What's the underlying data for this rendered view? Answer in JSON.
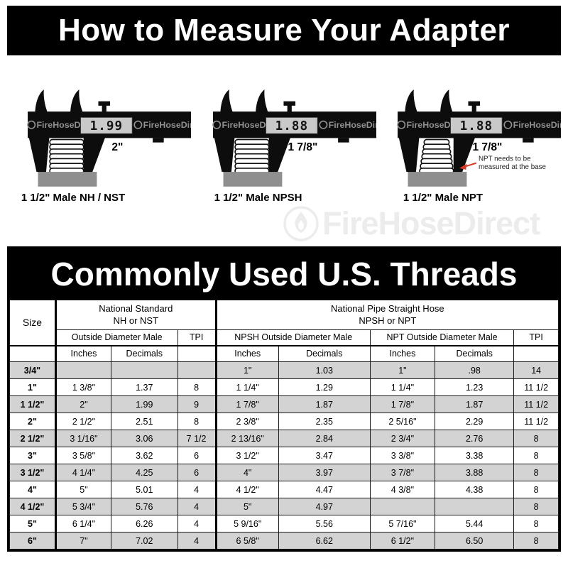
{
  "header": {
    "title": "How to Measure Your Adapter"
  },
  "watermark": {
    "brand": "FireHoseDirect"
  },
  "diagrams": [
    {
      "display": "1.99",
      "label": "2\"",
      "caption": "1 1/2\" Male NH / NST",
      "taper": false
    },
    {
      "display": "1.88",
      "label": "1 7/8\"",
      "caption": "1 1/2\" Male NPSH",
      "taper": false
    },
    {
      "display": "1.88",
      "label": "1 7/8\"",
      "caption": "1 1/2\" Male NPT",
      "taper": true,
      "note_line1": "NPT needs to be",
      "note_line2": "measured at the base"
    }
  ],
  "table": {
    "title": "Commonly Used U.S. Threads",
    "size_label": "Size",
    "nh_line1": "National Standard",
    "nh_line2": "NH or NST",
    "npsh_line1": "National Pipe Straight Hose",
    "npsh_line2": "NPSH or NPT",
    "sub_od": "Outside Diameter Male",
    "sub_tpi": "TPI",
    "sub_npsh": "NPSH Outside Diameter Male",
    "sub_npt": "NPT Outside Diameter Male",
    "unit_inches": "Inches",
    "unit_decimals": "Decimals",
    "rows": [
      {
        "size": "3/4\"",
        "nh_in": "",
        "nh_dec": "",
        "nh_tpi": "",
        "npsh_in": "1\"",
        "npsh_dec": "1.03",
        "npt_in": "1\"",
        "npt_dec": ".98",
        "tpi": "14"
      },
      {
        "size": "1\"",
        "nh_in": "1 3/8\"",
        "nh_dec": "1.37",
        "nh_tpi": "8",
        "npsh_in": "1 1/4\"",
        "npsh_dec": "1.29",
        "npt_in": "1 1/4\"",
        "npt_dec": "1.23",
        "tpi": "11 1/2"
      },
      {
        "size": "1 1/2\"",
        "nh_in": "2\"",
        "nh_dec": "1.99",
        "nh_tpi": "9",
        "npsh_in": "1 7/8\"",
        "npsh_dec": "1.87",
        "npt_in": "1 7/8\"",
        "npt_dec": "1.87",
        "tpi": "11 1/2"
      },
      {
        "size": "2\"",
        "nh_in": "2 1/2\"",
        "nh_dec": "2.51",
        "nh_tpi": "8",
        "npsh_in": "2 3/8\"",
        "npsh_dec": "2.35",
        "npt_in": "2 5/16\"",
        "npt_dec": "2.29",
        "tpi": "11 1/2"
      },
      {
        "size": "2 1/2\"",
        "nh_in": "3 1/16\"",
        "nh_dec": "3.06",
        "nh_tpi": "7 1/2",
        "npsh_in": "2 13/16\"",
        "npsh_dec": "2.84",
        "npt_in": "2 3/4\"",
        "npt_dec": "2.76",
        "tpi": "8"
      },
      {
        "size": "3\"",
        "nh_in": "3 5/8\"",
        "nh_dec": "3.62",
        "nh_tpi": "6",
        "npsh_in": "3 1/2\"",
        "npsh_dec": "3.47",
        "npt_in": "3 3/8\"",
        "npt_dec": "3.38",
        "tpi": "8"
      },
      {
        "size": "3 1/2\"",
        "nh_in": "4 1/4\"",
        "nh_dec": "4.25",
        "nh_tpi": "6",
        "npsh_in": "4\"",
        "npsh_dec": "3.97",
        "npt_in": "3 7/8\"",
        "npt_dec": "3.88",
        "tpi": "8"
      },
      {
        "size": "4\"",
        "nh_in": "5\"",
        "nh_dec": "5.01",
        "nh_tpi": "4",
        "npsh_in": "4 1/2\"",
        "npsh_dec": "4.47",
        "npt_in": "4 3/8\"",
        "npt_dec": "4.38",
        "tpi": "8"
      },
      {
        "size": "4 1/2\"",
        "nh_in": "5 3/4\"",
        "nh_dec": "5.76",
        "nh_tpi": "4",
        "npsh_in": "5\"",
        "npsh_dec": "4.97",
        "npt_in": "",
        "npt_dec": "",
        "tpi": "8"
      },
      {
        "size": "5\"",
        "nh_in": "6 1/4\"",
        "nh_dec": "6.26",
        "nh_tpi": "4",
        "npsh_in": "5 9/16\"",
        "npsh_dec": "5.56",
        "npt_in": "5 7/16\"",
        "npt_dec": "5.44",
        "tpi": "8"
      },
      {
        "size": "6\"",
        "nh_in": "7\"",
        "nh_dec": "7.02",
        "nh_tpi": "4",
        "npsh_in": "6 5/8\"",
        "npsh_dec": "6.62",
        "npt_in": "6 1/2\"",
        "npt_dec": "6.50",
        "tpi": "8"
      }
    ]
  },
  "colors": {
    "banner_bg": "#000000",
    "banner_text": "#ffffff",
    "row_alt": "#d3d3d3",
    "base_gray": "#8f8f8f",
    "display_bg": "#c9c9c9",
    "beam_black": "#0d0d0d",
    "watermark_gray": "#909090",
    "watermark_light": "#ececec",
    "arrow_red": "#d63b2a",
    "border_dark": "#1a1a1a"
  }
}
